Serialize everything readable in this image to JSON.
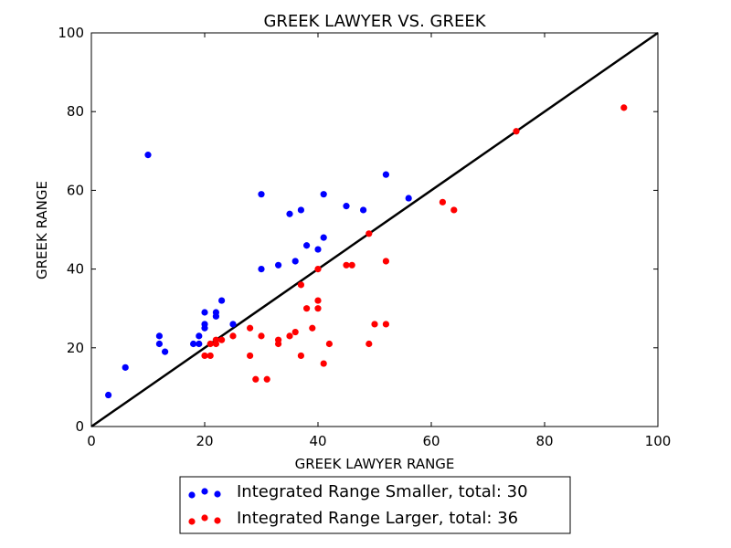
{
  "chart_data": {
    "type": "scatter",
    "title": "GREEK LAWYER VS. GREEK",
    "xlabel": "GREEK LAWYER RANGE",
    "ylabel": "GREEK RANGE",
    "xlim": [
      0,
      100
    ],
    "ylim": [
      0,
      100
    ],
    "xticks": [
      0,
      20,
      40,
      60,
      80,
      100
    ],
    "yticks": [
      0,
      20,
      40,
      60,
      80,
      100
    ],
    "grid": false,
    "legend_placement": "below",
    "reference_line": {
      "x": [
        0,
        100
      ],
      "y": [
        0,
        100
      ],
      "color": "#000000"
    },
    "series": [
      {
        "name": "Integrated Range Smaller, total: 30",
        "color": "#0000ff",
        "points": [
          [
            3,
            8
          ],
          [
            6,
            15
          ],
          [
            10,
            69
          ],
          [
            12,
            23
          ],
          [
            12,
            21
          ],
          [
            13,
            19
          ],
          [
            18,
            21
          ],
          [
            19,
            21
          ],
          [
            19,
            23
          ],
          [
            20,
            25
          ],
          [
            20,
            26
          ],
          [
            20,
            29
          ],
          [
            22,
            28
          ],
          [
            22,
            29
          ],
          [
            23,
            32
          ],
          [
            25,
            26
          ],
          [
            30,
            40
          ],
          [
            30,
            59
          ],
          [
            33,
            41
          ],
          [
            35,
            54
          ],
          [
            36,
            42
          ],
          [
            37,
            55
          ],
          [
            38,
            46
          ],
          [
            40,
            45
          ],
          [
            41,
            48
          ],
          [
            41,
            59
          ],
          [
            45,
            56
          ],
          [
            48,
            55
          ],
          [
            52,
            64
          ],
          [
            56,
            58
          ]
        ]
      },
      {
        "name": "Integrated Range Larger, total: 36",
        "color": "#ff0000",
        "points": [
          [
            20,
            18
          ],
          [
            21,
            18
          ],
          [
            21,
            21
          ],
          [
            22,
            21
          ],
          [
            22,
            22
          ],
          [
            23,
            22
          ],
          [
            25,
            23
          ],
          [
            28,
            25
          ],
          [
            28,
            18
          ],
          [
            29,
            12
          ],
          [
            30,
            23
          ],
          [
            31,
            12
          ],
          [
            33,
            22
          ],
          [
            33,
            21
          ],
          [
            35,
            23
          ],
          [
            36,
            24
          ],
          [
            37,
            36
          ],
          [
            37,
            18
          ],
          [
            38,
            30
          ],
          [
            39,
            25
          ],
          [
            40,
            40
          ],
          [
            40,
            32
          ],
          [
            40,
            30
          ],
          [
            41,
            16
          ],
          [
            42,
            21
          ],
          [
            45,
            41
          ],
          [
            46,
            41
          ],
          [
            49,
            49
          ],
          [
            49,
            21
          ],
          [
            50,
            26
          ],
          [
            52,
            42
          ],
          [
            52,
            26
          ],
          [
            62,
            57
          ],
          [
            64,
            55
          ],
          [
            75,
            75
          ],
          [
            94,
            81
          ]
        ]
      }
    ]
  }
}
